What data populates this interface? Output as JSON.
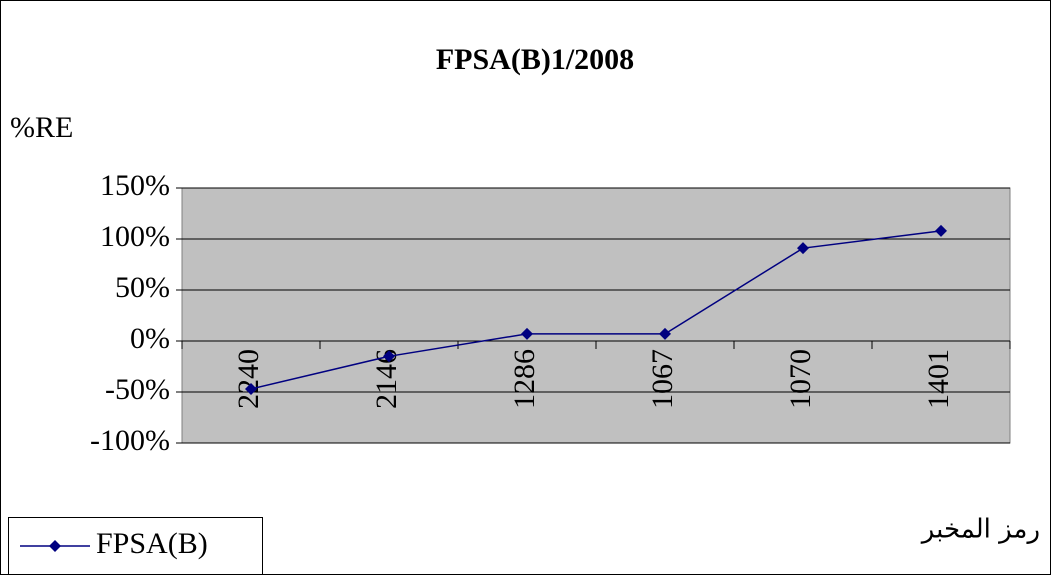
{
  "chart_data": {
    "type": "line",
    "title": "FPSA(B)1/2008",
    "y_label": "%RE",
    "x_label": "رمز المخبر",
    "categories": [
      "2240",
      "2146",
      "1286",
      "1067",
      "1070",
      "1401"
    ],
    "series": [
      {
        "name": "FPSA(B)",
        "color": "#000080",
        "values": [
          -47,
          -15,
          7,
          7,
          91,
          108
        ]
      }
    ],
    "ylim": [
      -100,
      150
    ],
    "yticks": [
      {
        "value": -100,
        "label": "-100%"
      },
      {
        "value": -50,
        "label": "-50%"
      },
      {
        "value": 0,
        "label": "0%"
      },
      {
        "value": 50,
        "label": "50%"
      },
      {
        "value": 100,
        "label": "100%"
      },
      {
        "value": 150,
        "label": "150%"
      }
    ],
    "grid": true,
    "legend": "bottom-left"
  }
}
